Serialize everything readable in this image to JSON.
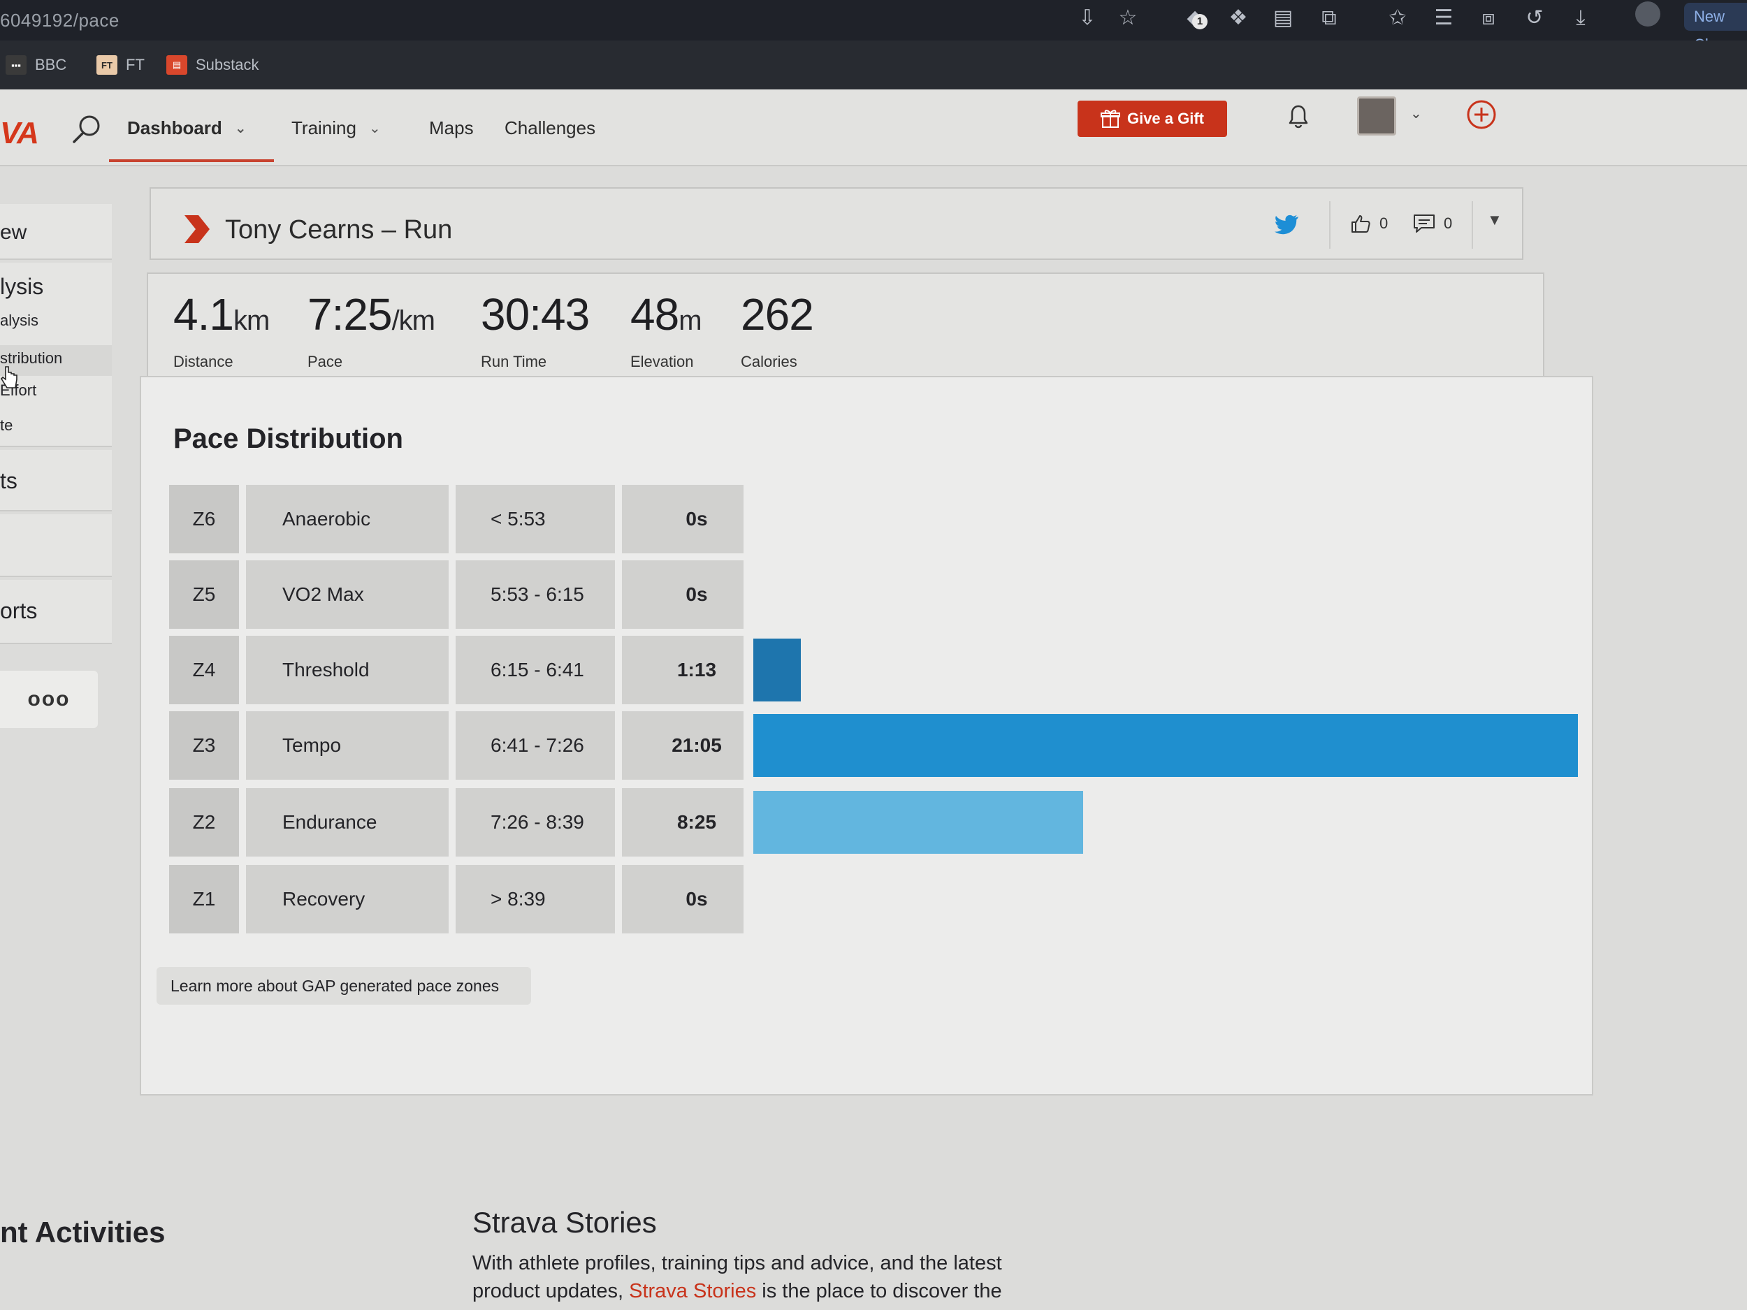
{
  "browser": {
    "url": "6049192/pace",
    "new_chrome": "New Ch",
    "extension_badge": "1",
    "bookmarks": [
      {
        "label": "BBC",
        "fav_text": "▪▪▪",
        "fav_color": "#ffffff",
        "fav_bg": "#3a3a3a"
      },
      {
        "label": "FT",
        "fav_text": "FT",
        "fav_color": "#2b2b2b",
        "fav_bg": "#e9c9a8"
      },
      {
        "label": "Substack",
        "fav_text": "▤",
        "fav_color": "#ffffff",
        "fav_bg": "#d9472c"
      }
    ]
  },
  "nav": {
    "logo": "VA",
    "items": [
      {
        "label": "Dashboard",
        "has_chevron": true,
        "active": true
      },
      {
        "label": "Training",
        "has_chevron": true
      },
      {
        "label": "Maps",
        "has_chevron": false
      },
      {
        "label": "Challenges",
        "has_chevron": false
      }
    ],
    "gift_button": "Give a Gift",
    "accent": "#c8331b"
  },
  "sidebar": {
    "items": [
      {
        "label": "ew"
      },
      {
        "label": "lysis"
      },
      {
        "label": "alysis"
      },
      {
        "label": "stribution"
      },
      {
        "label": "Effort"
      },
      {
        "label": "te"
      },
      {
        "label": "ts"
      },
      {
        "label": ""
      },
      {
        "label": "orts"
      }
    ],
    "more": "ooo"
  },
  "activity": {
    "title": "Tony Cearns – Run",
    "kudos_count": "0",
    "comment_count": "0"
  },
  "stats": [
    {
      "value": "4.1",
      "unit": "km",
      "label": "Distance"
    },
    {
      "value": "7:25",
      "unit": "/km",
      "label": "Pace"
    },
    {
      "value": "30:43",
      "unit": "",
      "label": "Run Time"
    },
    {
      "value": "48",
      "unit": "m",
      "label": "Elevation"
    },
    {
      "value": "262",
      "unit": "",
      "label": "Calories"
    }
  ],
  "pace_distribution": {
    "title": "Pace Distribution",
    "zones": [
      {
        "code": "Z6",
        "name": "Anaerobic",
        "range": "< 5:53",
        "time": "0s",
        "fraction": 0.0,
        "color": "#1f6fa8"
      },
      {
        "code": "Z5",
        "name": "VO2 Max",
        "range": "5:53 - 6:15",
        "time": "0s",
        "fraction": 0.0,
        "color": "#1f6fa8"
      },
      {
        "code": "Z4",
        "name": "Threshold",
        "range": "6:15 - 6:41",
        "time": "1:13",
        "fraction": 0.058,
        "color": "#1e75ad"
      },
      {
        "code": "Z3",
        "name": "Tempo",
        "range": "6:41 - 7:26",
        "time": "21:05",
        "fraction": 1.0,
        "color": "#1f8fcf"
      },
      {
        "code": "Z2",
        "name": "Endurance",
        "range": "7:26 - 8:39",
        "time": "8:25",
        "fraction": 0.4,
        "color": "#62b6df"
      },
      {
        "code": "Z1",
        "name": "Recovery",
        "range": "> 8:39",
        "time": "0s",
        "fraction": 0.0,
        "color": "#1f6fa8"
      }
    ],
    "learn_more": "Learn more about GAP generated pace zones"
  },
  "bottom": {
    "recent_title": "nt Activities",
    "stories_title": "Strava Stories",
    "stories_text_before": "With athlete profiles, training tips and advice, and the latest product updates, ",
    "stories_link": "Strava Stories",
    "stories_text_after": " is the place to discover the"
  }
}
